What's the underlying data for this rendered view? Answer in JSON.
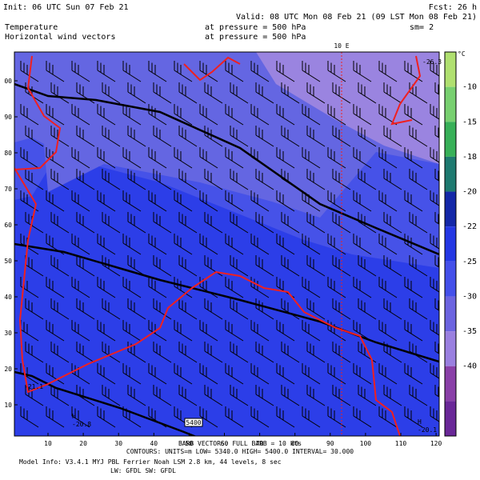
{
  "header": {
    "init": "Init: 06 UTC Sun 07 Feb 21",
    "fcst": "Fcst:    26 h",
    "valid": "Valid: 08 UTC Mon 08 Feb 21 (09 LST Mon 08 Feb 21)",
    "field1": "Temperature",
    "field1_level": "at pressure =  500 hPa",
    "smooth": "sm= 2",
    "field2": "Horizontal wind vectors",
    "field2_level": "at pressure =  500 hPa"
  },
  "map": {
    "meridian_label": "10 E",
    "labels": [
      {
        "text": "-26.3"
      },
      {
        "text": "-21.1"
      },
      {
        "text": "H"
      },
      {
        "text": "-20.8"
      },
      {
        "text": "H"
      },
      {
        "text": "-20.1"
      },
      {
        "text": "5400"
      }
    ],
    "x_ticks": [
      "10",
      "20",
      "30",
      "40",
      "50",
      "60",
      "70",
      "80",
      "90",
      "100",
      "110",
      "120"
    ],
    "y_ticks": [
      "00",
      "90",
      "80",
      "70",
      "60",
      "50",
      "40",
      "30",
      "20",
      "10"
    ]
  },
  "colorbar": {
    "unit": "°C",
    "labels": [
      "-10",
      "-15",
      "-18",
      "-20",
      "-22",
      "-25",
      "-30",
      "-35",
      "-40"
    ],
    "colors": [
      "#b0e070",
      "#78d070",
      "#38b058",
      "#1e7a70",
      "#1428a8",
      "#2438e4",
      "#4450ea",
      "#6c64e0",
      "#9a80e0",
      "#8a40a8",
      "#6a2898"
    ]
  },
  "footer": {
    "barbs": "BARB VECTORS:  FULL BARB = 10 kts",
    "contours": "CONTOURS:  UNITS=m  LOW=  5340.0    HIGH=  5400.0    INTERVAL=   30.000",
    "model": "Model Info: V3.4.1        MYJ PBL  Ferrier      Noah LSM  2.8 km,  44 levels,   8 sec",
    "radiation": "LW: GFDL SW: GFDL"
  }
}
